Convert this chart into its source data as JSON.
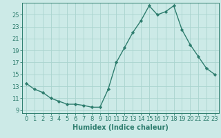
{
  "x": [
    0,
    1,
    2,
    3,
    4,
    5,
    6,
    7,
    8,
    9,
    10,
    11,
    12,
    13,
    14,
    15,
    16,
    17,
    18,
    19,
    20,
    21,
    22,
    23
  ],
  "y": [
    13.5,
    12.5,
    12.0,
    11.0,
    10.5,
    10.0,
    10.0,
    9.8,
    9.5,
    9.5,
    12.5,
    17.0,
    19.5,
    22.0,
    24.0,
    26.5,
    25.0,
    25.5,
    26.5,
    22.5,
    20.0,
    18.0,
    16.0,
    15.0
  ],
  "line_color": "#2e7d6e",
  "marker": "D",
  "marker_size": 2.2,
  "line_width": 1.0,
  "bg_color": "#cceae7",
  "grid_color": "#aad4cf",
  "xlabel": "Humidex (Indice chaleur)",
  "xlabel_fontsize": 7,
  "xlim": [
    -0.5,
    23.5
  ],
  "ylim": [
    8.5,
    27
  ],
  "yticks": [
    9,
    11,
    13,
    15,
    17,
    19,
    21,
    23,
    25
  ],
  "xticks": [
    0,
    1,
    2,
    3,
    4,
    5,
    6,
    7,
    8,
    9,
    10,
    11,
    12,
    13,
    14,
    15,
    16,
    17,
    18,
    19,
    20,
    21,
    22,
    23
  ],
  "tick_fontsize": 6.0,
  "axis_color": "#2e7d6e"
}
